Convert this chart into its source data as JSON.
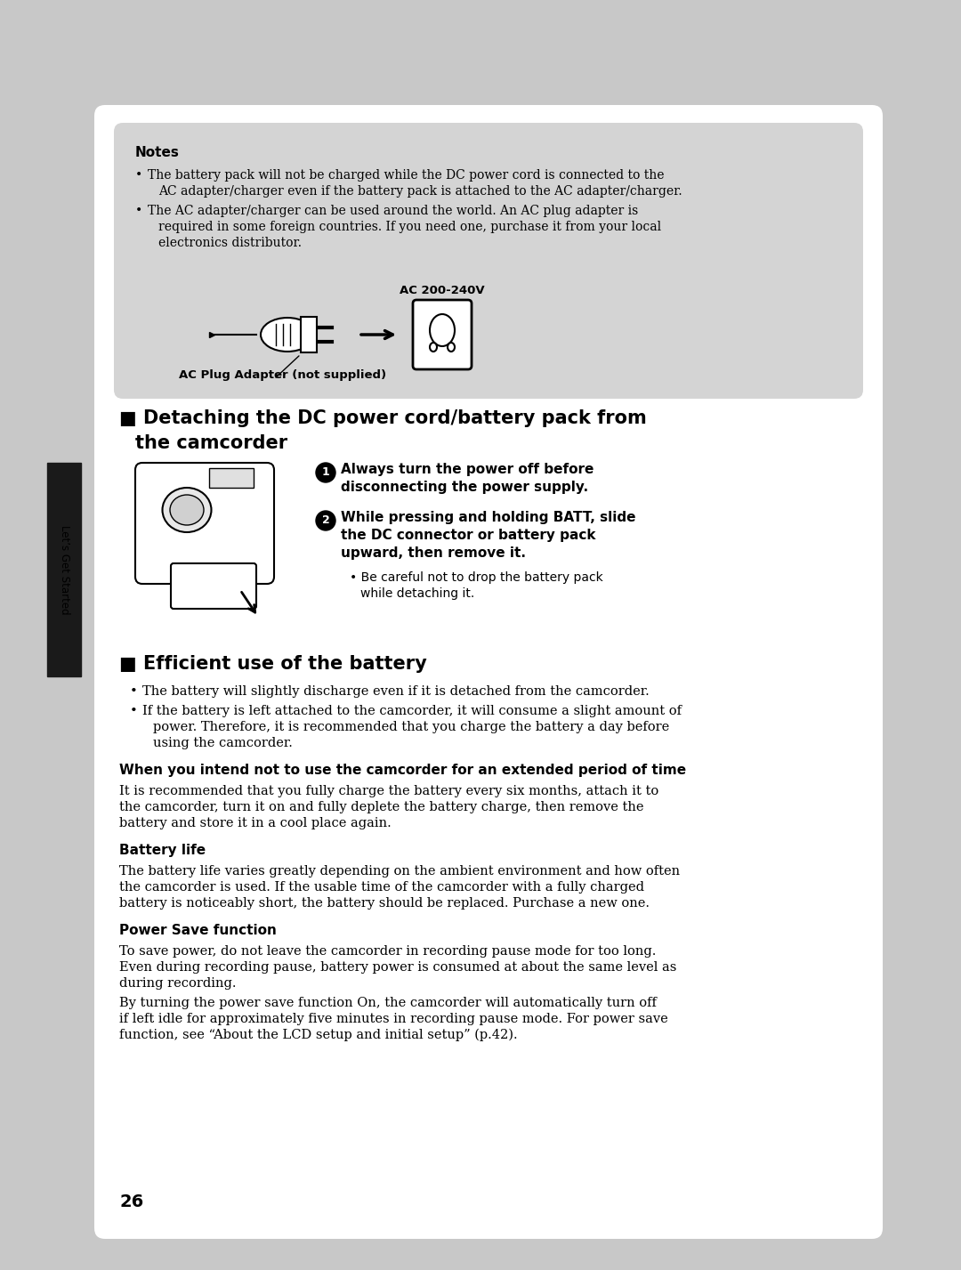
{
  "page_bg": "#c8c8c8",
  "content_bg": "#ffffff",
  "note_box_bg": "#d4d4d4",
  "page_number": "26",
  "sidebar_bg": "#1a1a1a",
  "sidebar_text": "Let’s Get Started",
  "notes_title": "Notes",
  "notes_bullet1_line1": "The battery pack will not be charged while the DC power cord is connected to the",
  "notes_bullet1_line2": "AC adapter/charger even if the battery pack is attached to the AC adapter/charger.",
  "notes_bullet2_line1": "The AC adapter/charger can be used around the world. An AC plug adapter is",
  "notes_bullet2_line2": "required in some foreign countries. If you need one, purchase it from your local",
  "notes_bullet2_line3": "electronics distributor.",
  "ac_label": "AC 200-240V",
  "plug_label": "AC Plug Adapter (not supplied)",
  "section1_line1": "■ Detaching the DC power cord/battery pack from",
  "section1_line2": "   the camcorder",
  "step1_line1": "Always turn the power off before",
  "step1_line2": "disconnecting the power supply.",
  "step2_line1": "While pressing and holding BATT, slide",
  "step2_line2": "the DC connector or battery pack",
  "step2_line3": "upward, then remove it.",
  "step2_sub1": "Be careful not to drop the battery pack",
  "step2_sub2": "while detaching it.",
  "section2_title": "■ Efficient use of the battery",
  "eff_bullet1": "The battery will slightly discharge even if it is detached from the camcorder.",
  "eff_bullet2_line1": "If the battery is left attached to the camcorder, it will consume a slight amount of",
  "eff_bullet2_line2": "power. Therefore, it is recommended that you charge the battery a day before",
  "eff_bullet2_line3": "using the camcorder.",
  "when_title": "When you intend not to use the camcorder for an extended period of time",
  "when_line1": "It is recommended that you fully charge the battery every six months, attach it to",
  "when_line2": "the camcorder, turn it on and fully deplete the battery charge, then remove the",
  "when_line3": "battery and store it in a cool place again.",
  "batt_life_title": "Battery life",
  "batt_life_line1": "The battery life varies greatly depending on the ambient environment and how often",
  "batt_life_line2": "the camcorder is used. If the usable time of the camcorder with a fully charged",
  "batt_life_line3": "battery is noticeably short, the battery should be replaced. Purchase a new one.",
  "ps_title": "Power Save function",
  "ps_line1": "To save power, do not leave the camcorder in recording pause mode for too long.",
  "ps_line2": "Even during recording pause, battery power is consumed at about the same level as",
  "ps_line3": "during recording.",
  "ps_line4": "By turning the power save function On, the camcorder will automatically turn off",
  "ps_line5": "if left idle for approximately five minutes in recording pause mode. For power save",
  "ps_line6": "function, see “About the LCD setup and initial setup” (p.42)."
}
